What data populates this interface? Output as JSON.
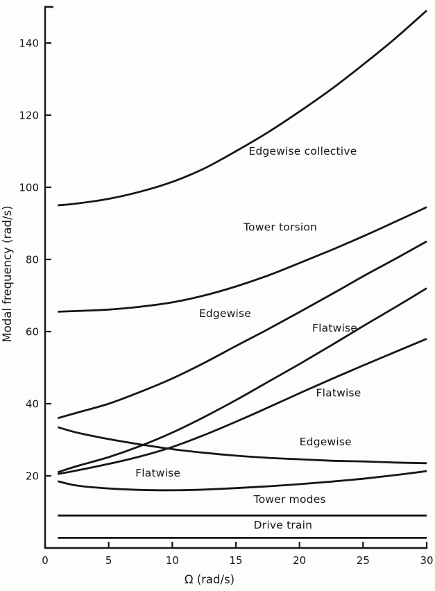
{
  "figure": {
    "background": "#fdfdfb",
    "ink": "#161616"
  },
  "chart_data": {
    "type": "line",
    "title": "",
    "xlabel": "Ω (rad/s)",
    "ylabel": "Modal frequency (rad/s)",
    "xlim": [
      0,
      30
    ],
    "ylim": [
      0,
      150
    ],
    "x_ticks": [
      0,
      5,
      10,
      15,
      20,
      25,
      30
    ],
    "y_ticks": [
      20,
      40,
      60,
      80,
      100,
      120,
      140
    ],
    "y_edge_tick": 150,
    "grid": false,
    "legend_position": "inline-labels",
    "series": [
      {
        "id": "edgewise-collective",
        "name": "Edgewise collective",
        "x": [
          1,
          2.5,
          5,
          7.5,
          10,
          12.5,
          15,
          17.5,
          20,
          22.5,
          25,
          27.5,
          30
        ],
        "y": [
          95,
          95.5,
          96.8,
          98.8,
          101.5,
          105.2,
          110,
          115.2,
          121,
          127.2,
          134,
          141.2,
          149
        ],
        "label": {
          "text": "Edgewise collective",
          "x": 16,
          "y": 109
        }
      },
      {
        "id": "tower-torsion",
        "name": "Tower torsion",
        "x": [
          1,
          2.5,
          5,
          7.5,
          10,
          12.5,
          15,
          17.5,
          20,
          22.5,
          25,
          27.5,
          30
        ],
        "y": [
          65.5,
          65.7,
          66.1,
          66.9,
          68.1,
          70,
          72.5,
          75.5,
          79,
          82.6,
          86.4,
          90.4,
          94.5
        ],
        "label": {
          "text": "Tower torsion",
          "x": 15.6,
          "y": 88
        }
      },
      {
        "id": "edgewise-upper",
        "name": "Edgewise (rising)",
        "x": [
          1,
          2.5,
          5,
          7.5,
          10,
          12.5,
          15,
          17.5,
          20,
          22.5,
          25,
          27.5,
          30
        ],
        "y": [
          36,
          37.5,
          40,
          43.3,
          47,
          51.3,
          56,
          60.6,
          65.4,
          70.3,
          75.3,
          80.1,
          85
        ],
        "label": {
          "text": "Edgewise",
          "x": 12.1,
          "y": 64
        }
      },
      {
        "id": "flatwise-third",
        "name": "Flatwise (third)",
        "x": [
          1,
          2.5,
          5,
          7.5,
          10,
          12.5,
          15,
          17.5,
          20,
          22.5,
          25,
          27.5,
          30
        ],
        "y": [
          21,
          22.7,
          25.2,
          28.3,
          32,
          36.3,
          41,
          46,
          51,
          56.2,
          61.5,
          66.7,
          72
        ],
        "label": {
          "text": "Flatwise",
          "x": 21,
          "y": 60
        }
      },
      {
        "id": "flatwise-second",
        "name": "Flatwise (second)",
        "x": [
          1,
          2.5,
          5,
          7.5,
          10,
          12.5,
          15,
          17.5,
          20,
          22.5,
          25,
          27.5,
          30
        ],
        "y": [
          20.5,
          21.5,
          23.3,
          25.4,
          28,
          31.3,
          35,
          38.9,
          42.9,
          46.8,
          50.6,
          54.3,
          58
        ],
        "label": {
          "text": "Flatwise",
          "x": 21.3,
          "y": 42
        }
      },
      {
        "id": "edgewise-descending",
        "name": "Edgewise (descending)",
        "x": [
          1,
          2.5,
          5,
          7.5,
          10,
          12.5,
          15,
          17.5,
          20,
          22.5,
          25,
          27.5,
          30
        ],
        "y": [
          33.5,
          32,
          30.2,
          28.7,
          27.4,
          26.4,
          25.6,
          25,
          24.6,
          24.2,
          24,
          23.7,
          23.5
        ],
        "label": {
          "text": "Edgewise",
          "x": 20,
          "y": 28.5
        }
      },
      {
        "id": "flatwise-first",
        "name": "Flatwise (first)",
        "x": [
          1,
          2.5,
          5,
          7.5,
          10,
          12.5,
          15,
          17.5,
          20,
          22.5,
          25,
          27.5,
          30
        ],
        "y": [
          18.5,
          17.3,
          16.5,
          16.1,
          16,
          16.2,
          16.6,
          17.1,
          17.7,
          18.4,
          19.2,
          20.2,
          21.3
        ],
        "label": {
          "text": "Flatwise",
          "x": 7.1,
          "y": 19.8
        }
      },
      {
        "id": "tower-modes",
        "name": "Tower modes",
        "x": [
          1,
          30
        ],
        "y": [
          9,
          9
        ],
        "label": {
          "text": "Tower modes",
          "x": 16.4,
          "y": 12.5
        }
      },
      {
        "id": "drive-train",
        "name": "Drive train",
        "x": [
          1,
          30
        ],
        "y": [
          2.8,
          2.8
        ],
        "label": {
          "text": "Drive train",
          "x": 16.4,
          "y": 5.4
        }
      }
    ]
  }
}
